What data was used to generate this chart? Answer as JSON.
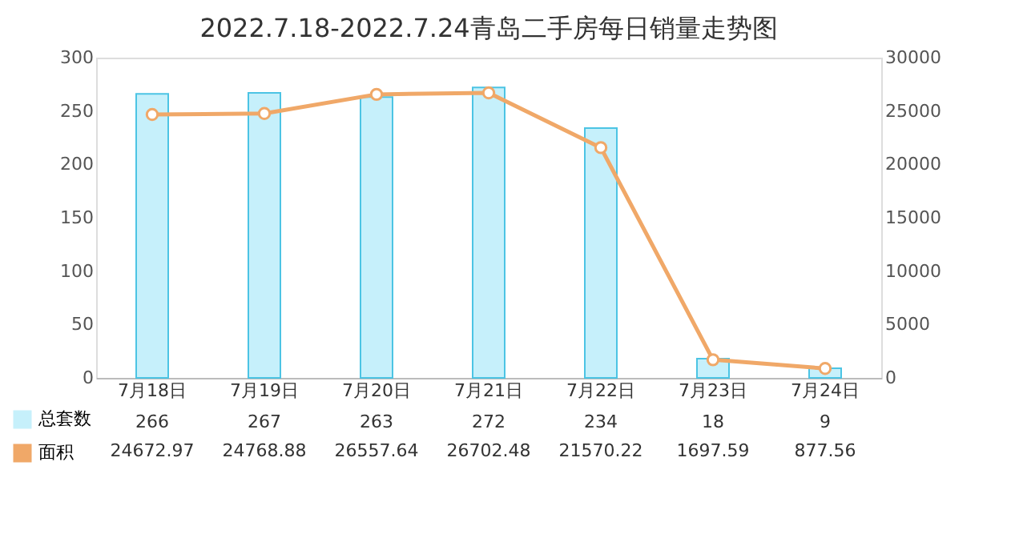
{
  "chart_data": {
    "type": "bar",
    "title": "2022.7.18-2022.7.24青岛二手房每日销量走势图",
    "categories": [
      "7月18日",
      "7月19日",
      "7月20日",
      "7月21日",
      "7月22日",
      "7月23日",
      "7月24日"
    ],
    "series": [
      {
        "name": "总套数",
        "color": "#c6f0fb",
        "values": [
          266,
          267,
          263,
          272,
          234,
          18,
          9
        ]
      },
      {
        "name": "面积",
        "type": "line",
        "axis": "y2",
        "color": "#f0a868",
        "marker": "circle",
        "values": [
          24672.97,
          24768.88,
          26557.64,
          26702.48,
          21570.22,
          1697.59,
          877.56
        ]
      }
    ],
    "ylim": [
      0,
      300
    ],
    "yticks": [
      0,
      50,
      100,
      150,
      200,
      250,
      300
    ],
    "y2lim": [
      0,
      30000
    ],
    "y2ticks": [
      0,
      5000,
      10000,
      15000,
      20000,
      25000,
      30000
    ],
    "grid": false,
    "legend": "bottom",
    "data_labels": true
  }
}
